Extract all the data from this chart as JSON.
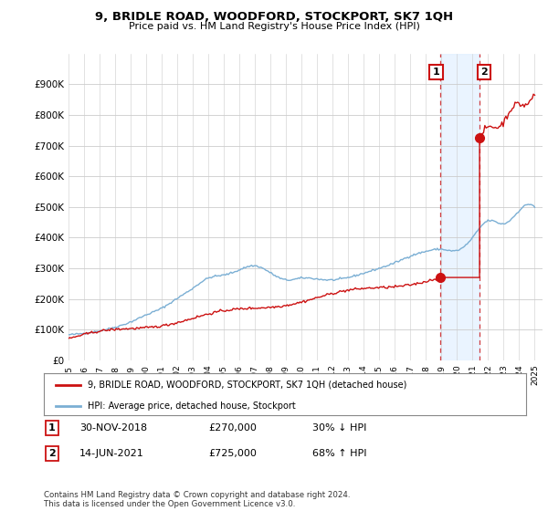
{
  "title": "9, BRIDLE ROAD, WOODFORD, STOCKPORT, SK7 1QH",
  "subtitle": "Price paid vs. HM Land Registry's House Price Index (HPI)",
  "ylim": [
    0,
    1000000
  ],
  "yticks": [
    0,
    100000,
    200000,
    300000,
    400000,
    500000,
    600000,
    700000,
    800000,
    900000
  ],
  "ytick_labels": [
    "£0",
    "£100K",
    "£200K",
    "£300K",
    "£400K",
    "£500K",
    "£600K",
    "£700K",
    "£800K",
    "£900K"
  ],
  "xlim_start": 1995.0,
  "xlim_end": 2025.5,
  "hpi_color": "#7bafd4",
  "price_color": "#cc1111",
  "shading_color": "#ddeeff",
  "transaction1_year": 2018.92,
  "transaction1_price": 270000,
  "transaction2_year": 2021.45,
  "transaction2_price": 725000,
  "legend_property": "9, BRIDLE ROAD, WOODFORD, STOCKPORT, SK7 1QH (detached house)",
  "legend_hpi": "HPI: Average price, detached house, Stockport",
  "note1_label": "1",
  "note1_date": "30-NOV-2018",
  "note1_price": "£270,000",
  "note1_pct": "30% ↓ HPI",
  "note2_label": "2",
  "note2_date": "14-JUN-2021",
  "note2_price": "£725,000",
  "note2_pct": "68% ↑ HPI",
  "footnote": "Contains HM Land Registry data © Crown copyright and database right 2024.\nThis data is licensed under the Open Government Licence v3.0.",
  "bg": "#ffffff",
  "grid_color": "#cccccc"
}
